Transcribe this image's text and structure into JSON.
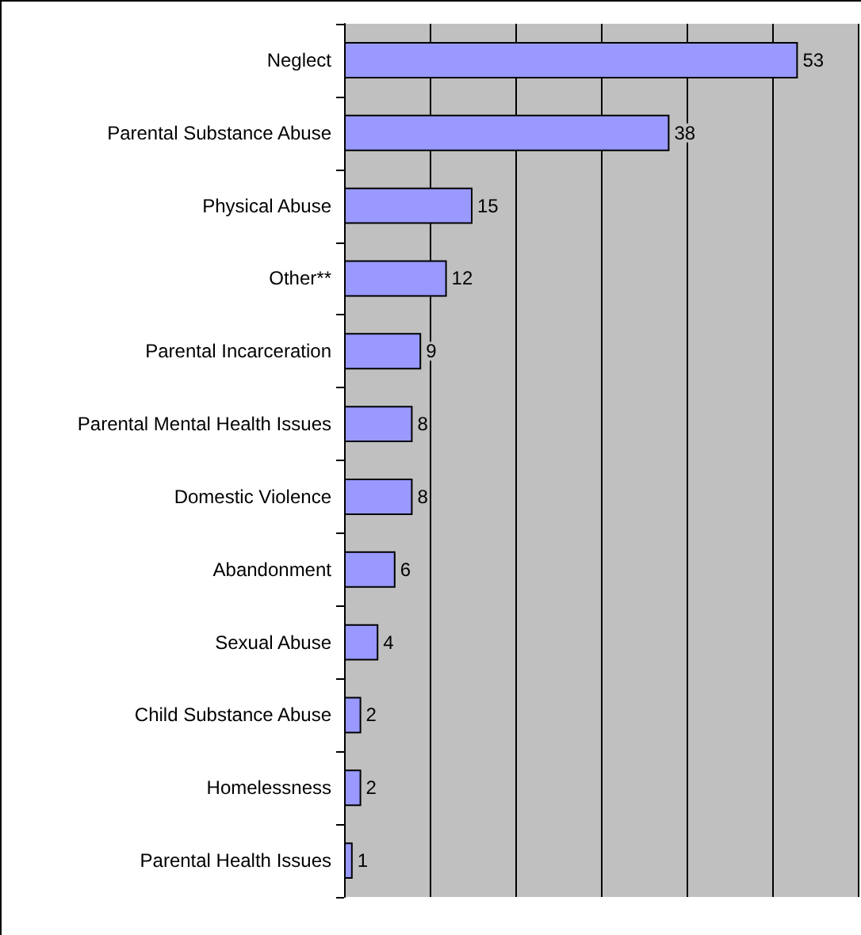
{
  "chart_data": {
    "type": "bar",
    "orientation": "horizontal",
    "categories": [
      "Neglect",
      "Parental Substance Abuse",
      "Physical Abuse",
      "Other**",
      "Parental Incarceration",
      "Parental Mental Health Issues",
      "Domestic Violence",
      "Abandonment",
      "Sexual Abuse",
      "Child Substance Abuse",
      "Homelessness",
      "Parental Health Issues"
    ],
    "values": [
      53,
      38,
      15,
      12,
      9,
      8,
      8,
      6,
      4,
      2,
      2,
      1
    ],
    "color": "#9999ff",
    "xlim": [
      0,
      60
    ],
    "xticks": [
      {
        "value": 0,
        "label": null
      },
      {
        "value": 10,
        "label": null
      },
      {
        "value": 20,
        "label": null
      },
      {
        "value": 30,
        "label": null
      },
      {
        "value": 40,
        "label": null
      },
      {
        "value": 50,
        "label": null
      },
      {
        "value": 60,
        "label": null
      }
    ],
    "grid": "x",
    "tick_labels": "y",
    "data_labels": true
  }
}
